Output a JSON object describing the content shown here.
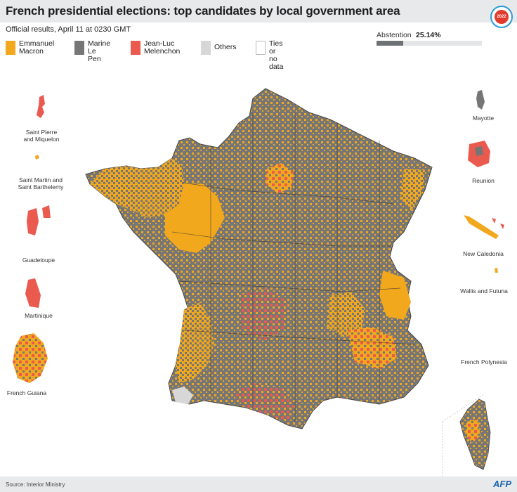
{
  "header": {
    "title": "French presidential elections: top candidates by local government area",
    "badge": "2022"
  },
  "subtitle": "Official results, April 11 at 0230 GMT",
  "legend": [
    {
      "label": "Emmanuel\nMacron",
      "color": "#f2a81d"
    },
    {
      "label": "Marine\nLe Pen",
      "color": "#767676"
    },
    {
      "label": "Jean-Luc\nMelenchon",
      "color": "#ea5a4f"
    },
    {
      "label": "Others",
      "color": "#d7d7d7"
    },
    {
      "label": "Ties or\nno data",
      "color": "#ffffff"
    }
  ],
  "abstention": {
    "label": "Abstention",
    "value_text": "25.14%",
    "value": 25.14
  },
  "territories": {
    "saint_pierre": "Saint Pierre\nand Miquelon",
    "saint_martin": "Saint Martin and\nSaint Barthelemy",
    "guadeloupe": "Guadeloupe",
    "martinique": "Martinique",
    "french_guiana": "French Guiana",
    "mayotte": "Mayotte",
    "reunion": "Reunion",
    "new_caledonia": "New Caledonia",
    "wallis_futuna": "Wallis and Futuna",
    "french_polynesia": "French Polynesia"
  },
  "footer": {
    "source": "Source: Interior Ministry",
    "credit": "AFP"
  },
  "colors": {
    "macron": "#f2a81d",
    "lepen": "#767676",
    "melenchon": "#ea5a4f",
    "others": "#d7d7d7"
  }
}
